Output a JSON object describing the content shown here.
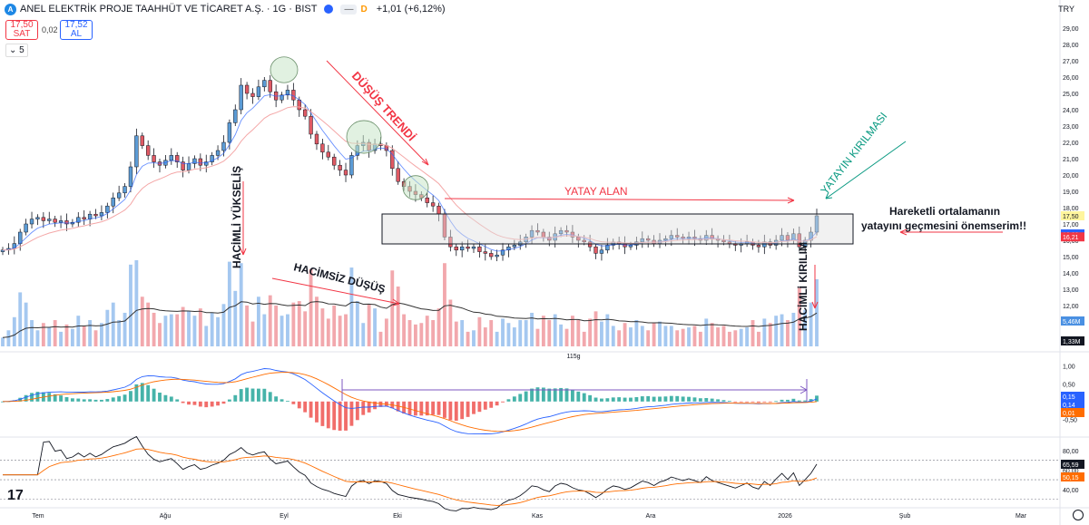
{
  "header": {
    "symbol_title": "ANEL ELEKTRİK PROJE TAAHHÜT VE TİCARET A.Ş. · 1G · BIST",
    "change_text": "+1,01 (+6,12%)",
    "d_badge": "D",
    "minus_badge": "—",
    "logo_icon": "anel-logo-icon",
    "status_color": "#2962ff"
  },
  "quote": {
    "sell_price": "17,50",
    "sell_label": "SAT",
    "spread": "0,02",
    "buy_price": "17,52",
    "buy_label": "AL",
    "interval_button": "5"
  },
  "currency": "TRY",
  "watermark": "17",
  "chart_data": [
    {
      "type": "candlestick",
      "panel": "price",
      "x_ticks": [
        "Tem",
        "Ağu",
        "Eyl",
        "Eki",
        "Kas",
        "Ara",
        "2026",
        "Şub",
        "Mar"
      ],
      "y_ticks": [
        "29,00",
        "28,00",
        "27,00",
        "26,00",
        "25,00",
        "24,00",
        "23,00",
        "22,00",
        "21,00",
        "20,00",
        "19,00",
        "18,00",
        "17,00",
        "16,00",
        "15,00",
        "14,00",
        "13,00",
        "12,00",
        "11,00",
        "10,00"
      ],
      "ylim": [
        9.5,
        29.5
      ],
      "close": [
        15.4,
        15.5,
        15.8,
        16.5,
        17.0,
        17.3,
        17.4,
        17.2,
        17.3,
        17.1,
        17.2,
        17.0,
        17.1,
        17.4,
        17.3,
        17.6,
        17.5,
        17.7,
        18.1,
        18.6,
        18.9,
        19.3,
        20.5,
        22.4,
        21.8,
        21.2,
        20.8,
        20.6,
        20.9,
        21.2,
        20.8,
        20.3,
        20.7,
        21.0,
        20.6,
        20.8,
        21.2,
        21.5,
        22.0,
        23.2,
        24.0,
        25.5,
        25.0,
        24.8,
        25.4,
        25.8,
        25.1,
        24.6,
        24.9,
        25.2,
        24.6,
        24.0,
        23.6,
        22.5,
        21.9,
        21.4,
        21.1,
        20.6,
        20.3,
        20.0,
        21.2,
        21.8,
        22.0,
        21.5,
        21.9,
        21.8,
        21.5,
        20.4,
        19.6,
        19.3,
        19.0,
        18.8,
        18.6,
        18.3,
        18.1,
        17.6,
        16.2,
        15.6,
        15.4,
        15.6,
        15.5,
        15.6,
        15.3,
        15.2,
        15.0,
        15.1,
        15.4,
        15.6,
        15.7,
        15.9,
        16.2,
        16.6,
        16.5,
        16.2,
        16.0,
        16.4,
        16.6,
        16.5,
        16.2,
        16.0,
        15.9,
        15.6,
        15.2,
        15.4,
        15.7,
        15.9,
        15.8,
        15.6,
        15.7,
        15.9,
        16.1,
        16.0,
        15.8,
        16.0,
        16.1,
        16.3,
        16.2,
        16.1,
        16.2,
        16.1,
        16.0,
        16.3,
        16.1,
        16.0,
        15.9,
        15.8,
        15.7,
        15.8,
        15.9,
        15.7,
        15.6,
        15.9,
        15.7,
        16.0,
        16.3,
        16.0,
        16.4,
        15.6,
        16.0,
        16.5,
        17.5
      ],
      "series": [
        {
          "name": "",
          "role": "ema-fast",
          "color": "#2962ff"
        },
        {
          "name": "",
          "role": "ema-slow",
          "color": "#f4a7a7"
        }
      ],
      "price_labels": [
        "17,50",
        "16,39",
        "16,21"
      ],
      "price_label_colors": [
        "#fff59d",
        "#2962ff",
        "#f23645"
      ],
      "volume_labels": [
        "5,46M",
        "1,33M"
      ],
      "annotations": [
        {
          "text": "DÜŞÜŞ TRENDİ",
          "color": "#f23645"
        },
        {
          "text": "HACİMLİ YÜKSELİŞ",
          "color": "#131722"
        },
        {
          "text": "HACİMSİZ DÜŞÜŞ",
          "color": "#131722"
        },
        {
          "text": "YATAY ALAN",
          "color": "#f23645"
        },
        {
          "text": "YATAYIN KIRILMASI",
          "color": "#089981"
        },
        {
          "text": "HACİMLİ KIRILIM",
          "color": "#131722"
        },
        {
          "text": "Hareketli ortalamanın",
          "color": "#131722"
        },
        {
          "text": "yatayını geçmesini önemserim!!",
          "color": "#131722"
        }
      ],
      "date_range_label": "115g"
    },
    {
      "type": "histogram",
      "panel": "macd",
      "y_ticks": [
        "1,00",
        "0,50",
        "0,00",
        "-0,50"
      ],
      "ylim": [
        -0.9,
        1.3
      ],
      "labels": [
        "0,15",
        "0,14",
        "0,01"
      ],
      "label_colors": [
        "#2962ff",
        "#2962ff",
        "#ff6d00"
      ]
    },
    {
      "type": "line",
      "panel": "rsi",
      "y_ticks": [
        "80,00",
        "60,00",
        "40,00"
      ],
      "ylim": [
        25,
        90
      ],
      "labels": [
        "65,59",
        "50,15"
      ],
      "label_colors": [
        "#131722",
        "#ff6d00"
      ]
    }
  ]
}
